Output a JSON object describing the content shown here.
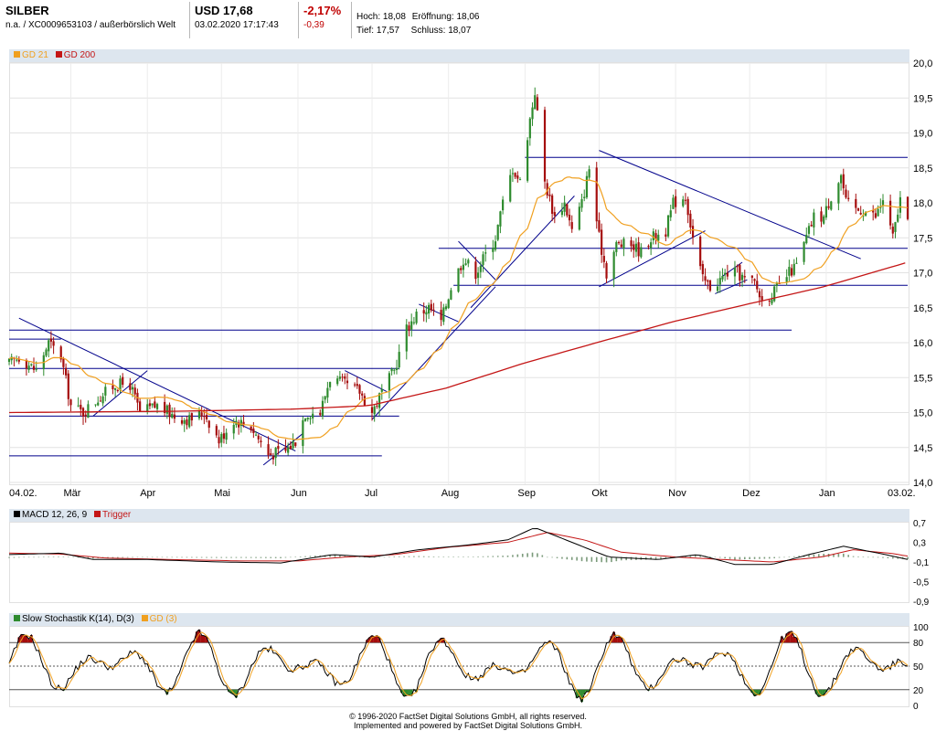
{
  "header": {
    "name": "SILBER",
    "sub": "n.a. / XC0009653103 / außerbörslich Welt",
    "price": "USD 17,68",
    "datetime": "03.02.2020 17:17:43",
    "change_pct": "-2,17%",
    "change_abs": "-0,39",
    "high_label": "Hoch:",
    "high": "18,08",
    "open_label": "Eröffnung:",
    "open": "18,06",
    "low_label": "Tief:",
    "low": "17,57",
    "close_label": "Schluss:",
    "close": "18,07"
  },
  "colors": {
    "up": "#2e8b2e",
    "down": "#a50d0d",
    "gd21": "#f0a020",
    "gd200": "#c41616",
    "trend": "#00008b",
    "legend_bg": "#dde6ef",
    "stoch_fill_up": "#a50d0d",
    "stoch_fill_down": "#2e8b2e"
  },
  "legend_main": [
    {
      "label": "GD 21",
      "color": "#f0a020"
    },
    {
      "label": "GD 200",
      "color": "#c41616"
    }
  ],
  "legend_macd": [
    {
      "label": "MACD 12, 26, 9",
      "color": "#000000"
    },
    {
      "label": "Trigger",
      "color": "#c41616"
    }
  ],
  "legend_stoch": [
    {
      "label": "Slow Stochastik K(14), D(3)",
      "color": "#2e8b2e"
    },
    {
      "label": "GD (3)",
      "color": "#f0a020"
    }
  ],
  "footer": {
    "line1": "© 1996-2020 FactSet Digital Solutions GmbH, all rights reserved.",
    "line2": "Implemented and powered by FactSet Digital Solutions GmbH."
  },
  "chart_data": [
    {
      "type": "candlestick",
      "title": "SILBER",
      "x_labels": [
        "04.02.",
        "Mär",
        "Apr",
        "Mai",
        "Jun",
        "Jul",
        "Aug",
        "Sep",
        "Okt",
        "Nov",
        "Dez",
        "Jan",
        "03.02."
      ],
      "y_ticks": [
        "14,0",
        "14,5",
        "15,0",
        "15,5",
        "16,0",
        "16,5",
        "17,0",
        "17,5",
        "18,0",
        "18,5",
        "19,0",
        "19,5",
        "20,0"
      ],
      "ylim": [
        14.0,
        20.0
      ],
      "close_path": [
        [
          "2019-02-04",
          15.7
        ],
        [
          "2019-02-08",
          15.8
        ],
        [
          "2019-02-15",
          15.6
        ],
        [
          "2019-02-20",
          16.0
        ],
        [
          "2019-02-25",
          15.8
        ],
        [
          "2019-03-01",
          15.1
        ],
        [
          "2019-03-06",
          15.0
        ],
        [
          "2019-03-12",
          15.2
        ],
        [
          "2019-03-19",
          15.4
        ],
        [
          "2019-03-25",
          15.4
        ],
        [
          "2019-03-29",
          15.0
        ],
        [
          "2019-04-05",
          15.1
        ],
        [
          "2019-04-12",
          14.95
        ],
        [
          "2019-04-18",
          14.9
        ],
        [
          "2019-04-24",
          15.0
        ],
        [
          "2019-04-30",
          14.6
        ],
        [
          "2019-05-06",
          14.9
        ],
        [
          "2019-05-13",
          14.8
        ],
        [
          "2019-05-20",
          14.4
        ],
        [
          "2019-05-27",
          14.45
        ],
        [
          "2019-05-31",
          14.6
        ],
        [
          "2019-06-04",
          15.0
        ],
        [
          "2019-06-10",
          15.0
        ],
        [
          "2019-06-14",
          15.5
        ],
        [
          "2019-06-20",
          15.4
        ],
        [
          "2019-06-26",
          15.3
        ],
        [
          "2019-07-01",
          15.0
        ],
        [
          "2019-07-05",
          15.3
        ],
        [
          "2019-07-10",
          15.6
        ],
        [
          "2019-07-15",
          16.2
        ],
        [
          "2019-07-19",
          16.4
        ],
        [
          "2019-07-24",
          16.5
        ],
        [
          "2019-07-29",
          16.3
        ],
        [
          "2019-08-02",
          16.8
        ],
        [
          "2019-08-07",
          17.2
        ],
        [
          "2019-08-12",
          17.0
        ],
        [
          "2019-08-15",
          17.2
        ],
        [
          "2019-08-20",
          17.5
        ],
        [
          "2019-08-23",
          18.0
        ],
        [
          "2019-08-27",
          18.5
        ],
        [
          "2019-08-30",
          18.3
        ],
        [
          "2019-09-03",
          19.2
        ],
        [
          "2019-09-05",
          19.6
        ],
        [
          "2019-09-09",
          18.3
        ],
        [
          "2019-09-13",
          17.8
        ],
        [
          "2019-09-17",
          18.0
        ],
        [
          "2019-09-20",
          17.6
        ],
        [
          "2019-09-24",
          18.0
        ],
        [
          "2019-09-27",
          18.5
        ],
        [
          "2019-10-01",
          17.5
        ],
        [
          "2019-10-04",
          17.0
        ],
        [
          "2019-10-08",
          17.4
        ],
        [
          "2019-10-14",
          17.4
        ],
        [
          "2019-10-18",
          17.3
        ],
        [
          "2019-10-22",
          17.5
        ],
        [
          "2019-10-28",
          17.6
        ],
        [
          "2019-10-31",
          18.0
        ],
        [
          "2019-11-05",
          18.1
        ],
        [
          "2019-11-08",
          17.5
        ],
        [
          "2019-11-12",
          16.9
        ],
        [
          "2019-11-15",
          16.8
        ],
        [
          "2019-11-19",
          16.9
        ],
        [
          "2019-11-22",
          17.0
        ],
        [
          "2019-11-26",
          17.0
        ],
        [
          "2019-11-29",
          16.9
        ],
        [
          "2019-12-03",
          16.85
        ],
        [
          "2019-12-06",
          16.6
        ],
        [
          "2019-12-10",
          16.7
        ],
        [
          "2019-12-13",
          16.8
        ],
        [
          "2019-12-17",
          17.0
        ],
        [
          "2019-12-20",
          17.1
        ],
        [
          "2019-12-24",
          17.5
        ],
        [
          "2019-12-27",
          17.8
        ],
        [
          "2019-12-31",
          17.8
        ],
        [
          "2020-01-03",
          18.1
        ],
        [
          "2020-01-07",
          18.4
        ],
        [
          "2020-01-09",
          18.0
        ],
        [
          "2020-01-13",
          17.9
        ],
        [
          "2020-01-16",
          17.9
        ],
        [
          "2020-01-21",
          17.8
        ],
        [
          "2020-01-24",
          18.05
        ],
        [
          "2020-01-28",
          17.5
        ],
        [
          "2020-01-31",
          18.05
        ],
        [
          "2020-02-03",
          17.68
        ]
      ],
      "gd200_path": [
        [
          "2019-02-04",
          15.0
        ],
        [
          "2019-04-15",
          15.02
        ],
        [
          "2019-05-31",
          15.05
        ],
        [
          "2019-06-30",
          15.1
        ],
        [
          "2019-07-31",
          15.35
        ],
        [
          "2019-08-31",
          15.7
        ],
        [
          "2019-09-30",
          16.0
        ],
        [
          "2019-10-31",
          16.3
        ],
        [
          "2019-11-30",
          16.55
        ],
        [
          "2019-12-31",
          16.8
        ],
        [
          "2020-02-03",
          17.15
        ]
      ],
      "trend_lines": [
        {
          "x1": "2019-02-08",
          "y1": 16.35,
          "x2": "2019-05-31",
          "y2": 14.45
        },
        {
          "x1": "2019-03-10",
          "y1": 14.95,
          "x2": "2019-04-01",
          "y2": 15.6
        },
        {
          "x1": "2019-05-18",
          "y1": 14.25,
          "x2": "2019-06-03",
          "y2": 14.7
        },
        {
          "x1": "2019-06-20",
          "y1": 15.6,
          "x2": "2019-07-07",
          "y2": 15.3
        },
        {
          "x1": "2019-07-01",
          "y1": 14.9,
          "x2": "2019-08-20",
          "y2": 16.8
        },
        {
          "x1": "2019-07-20",
          "y1": 16.55,
          "x2": "2019-08-05",
          "y2": 16.3
        },
        {
          "x1": "2019-08-05",
          "y1": 17.45,
          "x2": "2019-08-20",
          "y2": 16.9
        },
        {
          "x1": "2019-08-10",
          "y1": 16.5,
          "x2": "2019-09-21",
          "y2": 18.1
        },
        {
          "x1": "2019-10-01",
          "y1": 18.75,
          "x2": "2020-01-15",
          "y2": 17.2
        },
        {
          "x1": "2019-10-01",
          "y1": 16.8,
          "x2": "2019-11-13",
          "y2": 17.6
        },
        {
          "x1": "2019-11-17",
          "y1": 16.7,
          "x2": "2019-11-30",
          "y2": 16.9
        },
        {
          "x1": "2019-11-20",
          "y1": 16.95,
          "x2": "2019-11-28",
          "y2": 17.15
        }
      ],
      "hlines": [
        {
          "y": 14.38,
          "x1": "2019-02-04",
          "x2": "2019-07-05"
        },
        {
          "y": 14.95,
          "x1": "2019-02-04",
          "x2": "2019-07-12"
        },
        {
          "y": 15.63,
          "x1": "2019-02-04",
          "x2": "2019-07-12"
        },
        {
          "y": 16.05,
          "x1": "2019-02-04",
          "x2": "2019-02-25"
        },
        {
          "y": 16.18,
          "x1": "2019-02-04",
          "x2": "2019-12-18"
        },
        {
          "y": 16.82,
          "x1": "2019-08-03",
          "x2": "2020-02-03"
        },
        {
          "y": 17.35,
          "x1": "2019-07-28",
          "x2": "2020-02-03"
        },
        {
          "y": 18.65,
          "x1": "2019-09-01",
          "x2": "2020-02-03"
        }
      ]
    },
    {
      "type": "line",
      "title": "MACD 12, 26, 9",
      "series": [
        {
          "name": "MACD 12, 26, 9"
        },
        {
          "name": "Trigger"
        }
      ],
      "y_ticks": [
        "0,7",
        "0,3",
        "-0,1",
        "-0,5",
        "-0,9"
      ],
      "ylim": [
        -0.9,
        0.7
      ],
      "macd_path": [
        [
          "2019-02-04",
          0.05
        ],
        [
          "2019-02-25",
          0.08
        ],
        [
          "2019-03-10",
          -0.05
        ],
        [
          "2019-04-01",
          -0.05
        ],
        [
          "2019-04-30",
          -0.1
        ],
        [
          "2019-05-25",
          -0.12
        ],
        [
          "2019-06-15",
          0.05
        ],
        [
          "2019-07-01",
          0.0
        ],
        [
          "2019-07-20",
          0.15
        ],
        [
          "2019-08-10",
          0.25
        ],
        [
          "2019-08-25",
          0.35
        ],
        [
          "2019-09-05",
          0.6
        ],
        [
          "2019-09-20",
          0.3
        ],
        [
          "2019-10-05",
          0.0
        ],
        [
          "2019-10-25",
          -0.05
        ],
        [
          "2019-11-10",
          0.05
        ],
        [
          "2019-11-25",
          -0.15
        ],
        [
          "2019-12-10",
          -0.15
        ],
        [
          "2019-12-25",
          0.05
        ],
        [
          "2020-01-08",
          0.22
        ],
        [
          "2020-01-25",
          0.05
        ],
        [
          "2020-02-03",
          -0.05
        ]
      ],
      "trigger_path": [
        [
          "2019-02-04",
          0.08
        ],
        [
          "2019-02-25",
          0.06
        ],
        [
          "2019-03-15",
          -0.02
        ],
        [
          "2019-04-10",
          -0.05
        ],
        [
          "2019-05-10",
          -0.08
        ],
        [
          "2019-06-01",
          -0.08
        ],
        [
          "2019-06-20",
          0.0
        ],
        [
          "2019-07-10",
          0.05
        ],
        [
          "2019-08-01",
          0.2
        ],
        [
          "2019-08-25",
          0.3
        ],
        [
          "2019-09-10",
          0.5
        ],
        [
          "2019-09-25",
          0.35
        ],
        [
          "2019-10-10",
          0.1
        ],
        [
          "2019-11-01",
          0.0
        ],
        [
          "2019-11-20",
          -0.05
        ],
        [
          "2019-12-10",
          -0.1
        ],
        [
          "2019-12-30",
          0.0
        ],
        [
          "2020-01-12",
          0.15
        ],
        [
          "2020-01-28",
          0.07
        ],
        [
          "2020-02-03",
          0.02
        ]
      ]
    },
    {
      "type": "line",
      "title": "Slow Stochastik K(14), D(3)",
      "series": [
        {
          "name": "Slow Stochastik K(14), D(3)"
        },
        {
          "name": "GD (3)"
        }
      ],
      "y_ticks": [
        "100",
        "80",
        "50",
        "20",
        "0"
      ],
      "ylim": [
        0,
        100
      ],
      "reference_lines": [
        80,
        50,
        20
      ]
    }
  ]
}
